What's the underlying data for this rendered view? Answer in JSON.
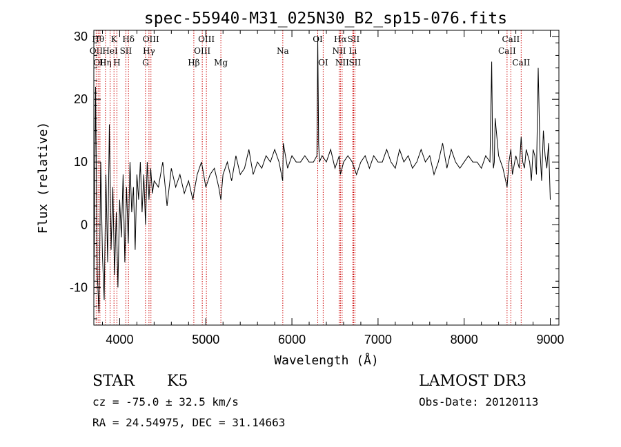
{
  "chart_data": {
    "type": "line",
    "title": "spec-55940-M31_025N30_B2_sp15-076.fits",
    "xlabel": "Wavelength (Å)",
    "ylabel": "Flux (relative)",
    "xlim": [
      3700,
      9100
    ],
    "ylim": [
      -16,
      31
    ],
    "x_ticks": [
      4000,
      5000,
      6000,
      7000,
      8000,
      9000
    ],
    "y_ticks": [
      -10,
      0,
      10,
      20,
      30
    ],
    "grid": false,
    "series": [
      {
        "name": "flux",
        "x": [
          3700,
          3720,
          3740,
          3760,
          3780,
          3800,
          3820,
          3840,
          3860,
          3880,
          3900,
          3920,
          3940,
          3960,
          3980,
          4000,
          4020,
          4040,
          4060,
          4080,
          4100,
          4120,
          4140,
          4160,
          4180,
          4200,
          4220,
          4240,
          4260,
          4280,
          4300,
          4320,
          4340,
          4360,
          4380,
          4400,
          4450,
          4500,
          4550,
          4600,
          4650,
          4700,
          4750,
          4800,
          4850,
          4861,
          4900,
          4950,
          5000,
          5050,
          5100,
          5150,
          5175,
          5200,
          5250,
          5300,
          5350,
          5400,
          5450,
          5500,
          5550,
          5600,
          5650,
          5700,
          5750,
          5800,
          5850,
          5893,
          5900,
          5950,
          6000,
          6050,
          6100,
          6150,
          6200,
          6250,
          6290,
          6300,
          6310,
          6320,
          6350,
          6400,
          6450,
          6500,
          6550,
          6563,
          6600,
          6650,
          6700,
          6750,
          6800,
          6850,
          6900,
          6950,
          7000,
          7050,
          7100,
          7150,
          7200,
          7250,
          7300,
          7350,
          7400,
          7450,
          7500,
          7550,
          7600,
          7650,
          7700,
          7750,
          7800,
          7850,
          7900,
          7950,
          8000,
          8050,
          8100,
          8150,
          8200,
          8250,
          8300,
          8320,
          8330,
          8340,
          8350,
          8360,
          8400,
          8450,
          8498,
          8520,
          8542,
          8560,
          8600,
          8620,
          8640,
          8662,
          8680,
          8700,
          8720,
          8740,
          8760,
          8780,
          8800,
          8820,
          8840,
          8860,
          8880,
          8900,
          8920,
          8940,
          8960,
          8980,
          9000
        ],
        "values": [
          -12,
          22,
          -8,
          -14,
          10,
          -5,
          -12,
          8,
          -6,
          16,
          -4,
          6,
          -8,
          2,
          -10,
          4,
          -2,
          8,
          -6,
          6,
          -3,
          10,
          2,
          6,
          -4,
          8,
          4,
          10,
          2,
          8,
          0,
          10,
          4,
          9,
          5,
          7,
          6,
          10,
          3,
          9,
          6,
          8,
          5,
          7,
          4,
          5,
          8,
          10,
          6,
          8,
          9,
          6,
          4,
          8,
          10,
          7,
          11,
          8,
          9,
          12,
          8,
          10,
          9,
          11,
          10,
          12,
          10,
          7,
          13,
          9,
          11,
          10,
          10,
          11,
          10,
          10,
          11,
          30,
          13,
          10,
          11,
          10,
          12,
          9,
          11,
          8,
          10,
          11,
          10,
          8,
          10,
          11,
          9,
          11,
          10,
          10,
          12,
          10,
          9,
          12,
          10,
          11,
          9,
          10,
          12,
          10,
          11,
          8,
          10,
          13,
          9,
          12,
          10,
          9,
          10,
          11,
          10,
          10,
          9,
          11,
          10,
          26,
          12,
          9,
          10,
          17,
          11,
          9,
          6,
          10,
          12,
          8,
          11,
          10,
          9,
          14,
          10,
          9,
          12,
          11,
          10,
          7,
          12,
          11,
          8,
          25,
          12,
          7,
          15,
          11,
          9,
          13,
          4
        ],
        "color": "#000000"
      }
    ],
    "line_markers": [
      {
        "x": 3727,
        "label": "OII",
        "row": 2
      },
      {
        "x": 3750,
        "label": "Hθ",
        "row": 1
      },
      {
        "x": 3771,
        "label": "OII",
        "row": 3
      },
      {
        "x": 3835,
        "label": "Hη",
        "row": 3
      },
      {
        "x": 3889,
        "label": "HeI",
        "row": 2
      },
      {
        "x": 3934,
        "label": "K",
        "row": 1
      },
      {
        "x": 3968,
        "label": "H",
        "row": 3
      },
      {
        "x": 4072,
        "label": "SII",
        "row": 2
      },
      {
        "x": 4102,
        "label": "Hδ",
        "row": 1
      },
      {
        "x": 4300,
        "label": "G",
        "row": 3
      },
      {
        "x": 4340,
        "label": "Hγ",
        "row": 2
      },
      {
        "x": 4363,
        "label": "OIII",
        "row": 1
      },
      {
        "x": 4861,
        "label": "Hβ",
        "row": 3
      },
      {
        "x": 4959,
        "label": "OIII",
        "row": 2
      },
      {
        "x": 5007,
        "label": "OIII",
        "row": 1
      },
      {
        "x": 5175,
        "label": "Mg",
        "row": 3
      },
      {
        "x": 5894,
        "label": "Na",
        "row": 2
      },
      {
        "x": 6300,
        "label": "OI",
        "row": 1
      },
      {
        "x": 6363,
        "label": "OI",
        "row": 3
      },
      {
        "x": 6548,
        "label": "NII",
        "row": 2
      },
      {
        "x": 6563,
        "label": "Hα",
        "row": 1
      },
      {
        "x": 6583,
        "label": "NII",
        "row": 3
      },
      {
        "x": 6707,
        "label": "Li",
        "row": 2
      },
      {
        "x": 6716,
        "label": "SII",
        "row": 1
      },
      {
        "x": 6731,
        "label": "SII",
        "row": 3
      },
      {
        "x": 8498,
        "label": "CaII",
        "row": 2
      },
      {
        "x": 8542,
        "label": "CaII",
        "row": 1
      },
      {
        "x": 8662,
        "label": "CaII",
        "row": 3
      }
    ]
  },
  "info": {
    "object_class": "STAR",
    "subclass": "K5",
    "survey": "LAMOST DR3",
    "redshift_line": "cz = -75.0 ± 32.5 km/s",
    "obs_date": "Obs-Date: 20120113",
    "coords": "RA =  24.54975, DEC =  31.14663"
  },
  "colors": {
    "marker_line": "#cc0000",
    "axis": "#000000",
    "background": "#ffffff"
  }
}
